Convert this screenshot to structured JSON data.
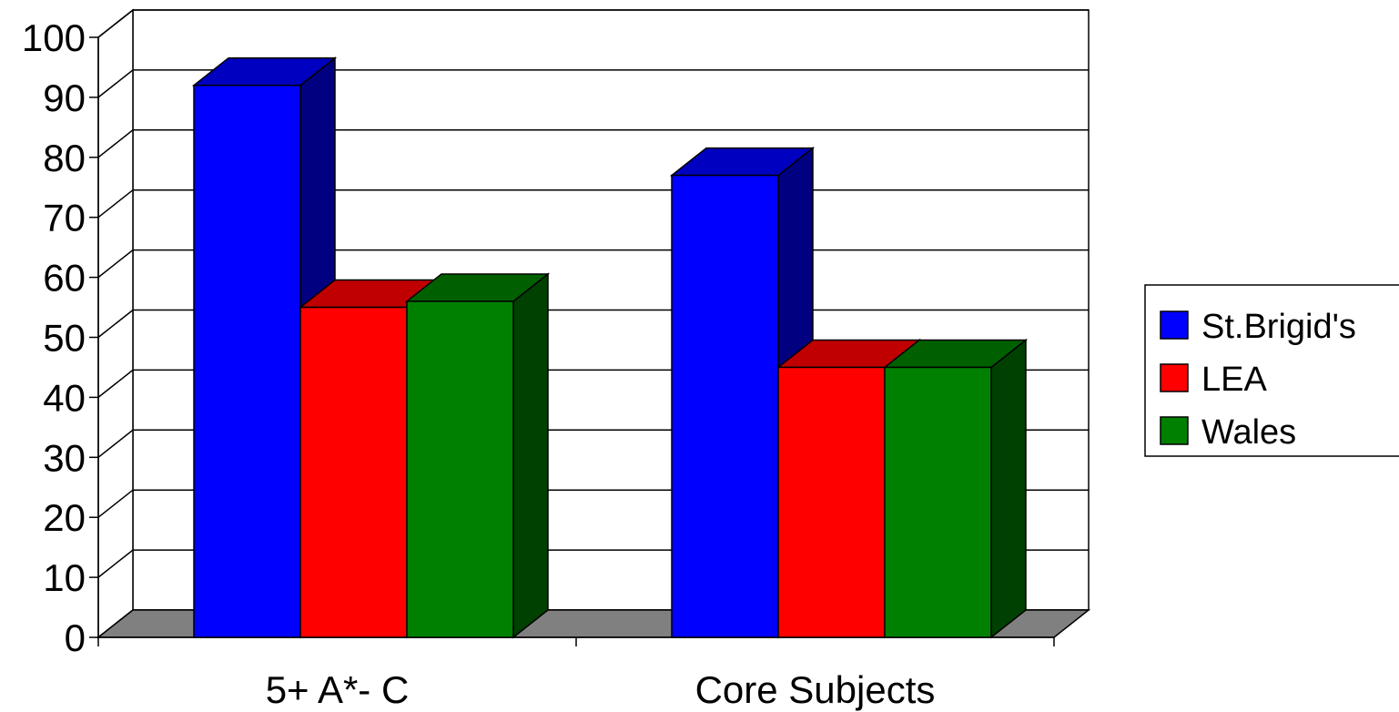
{
  "chart_data": {
    "type": "bar",
    "title": "",
    "xlabel": "",
    "ylabel": "",
    "categories": [
      "5+ A*- C",
      "Core Subjects"
    ],
    "series": [
      {
        "name": "St.Brigid's",
        "values": [
          92,
          77
        ],
        "color": "#0000ff",
        "top_color": "#0000c0",
        "side_color": "#000080"
      },
      {
        "name": "LEA",
        "values": [
          55,
          45
        ],
        "color": "#ff0000",
        "top_color": "#c00000",
        "side_color": "#800000"
      },
      {
        "name": "Wales",
        "values": [
          56,
          45
        ],
        "color": "#008000",
        "top_color": "#006000",
        "side_color": "#004000"
      }
    ],
    "ylim": [
      0,
      100
    ],
    "yticks": [
      "0",
      "10",
      "20",
      "30",
      "40",
      "50",
      "60",
      "70",
      "80",
      "90",
      "100"
    ],
    "grid": true,
    "floor_color": "#808080",
    "legend_position": "right"
  }
}
